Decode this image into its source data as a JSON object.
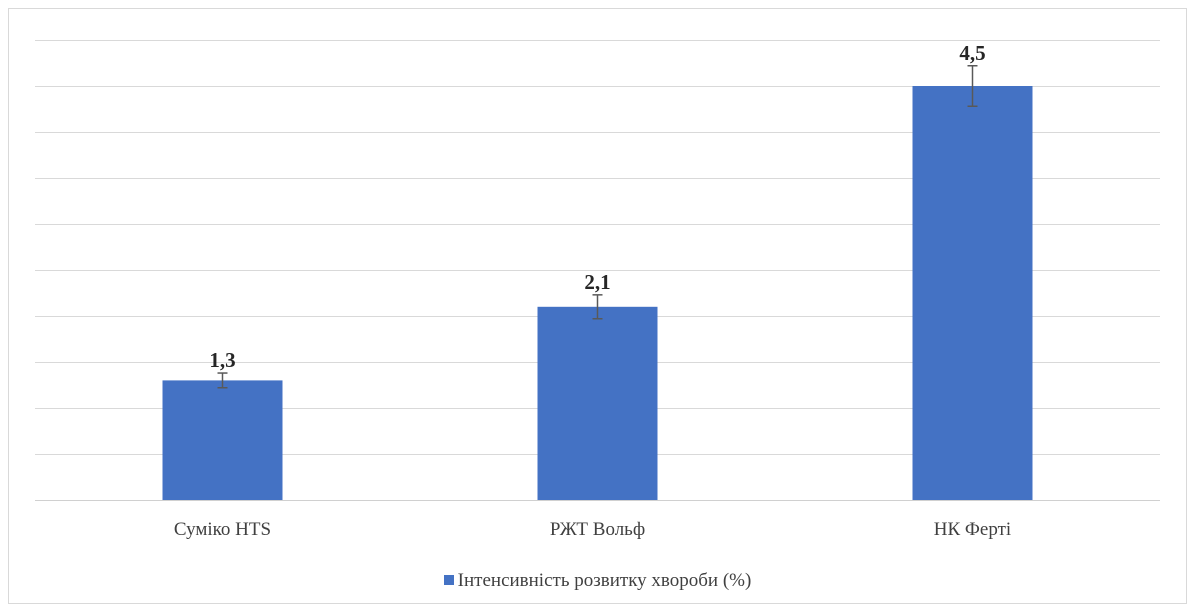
{
  "chart_data": {
    "type": "bar",
    "categories": [
      "Суміко HTS",
      "РЖТ Вольф",
      "НК Ферті"
    ],
    "series": [
      {
        "name": "Інтенсивність розвитку хвороби (%)",
        "values": [
          1.3,
          2.1,
          4.5
        ],
        "labels": [
          "1,3",
          "2,1",
          "4,5"
        ],
        "error": [
          0.08,
          0.13,
          0.22
        ],
        "color": "#4472C4"
      }
    ],
    "ylim": [
      0,
      5
    ],
    "grid": true,
    "axis_labels_visible": false,
    "legend_position": "bottom"
  }
}
